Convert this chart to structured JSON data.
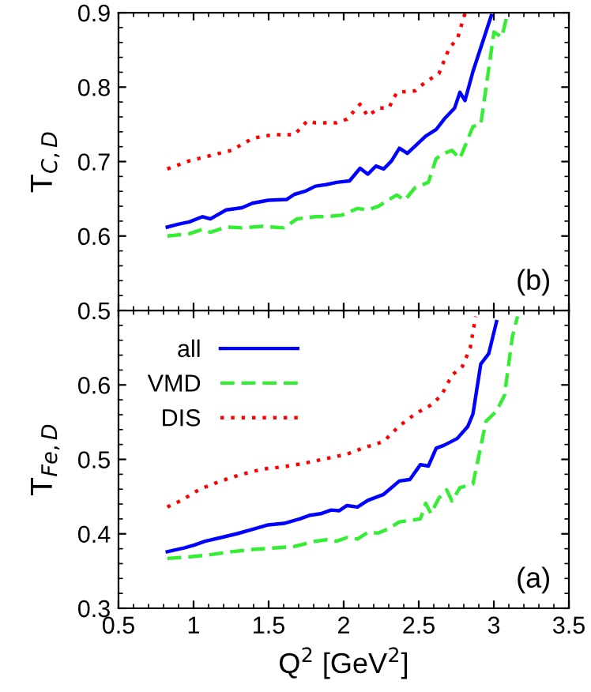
{
  "chart_data": [
    {
      "type": "line",
      "ylabel": "T$_{C,D}$",
      "xlim": [
        0.5,
        3.5
      ],
      "xticks": [
        0.5,
        1,
        1.5,
        2,
        2.5,
        3,
        3.5
      ],
      "ylim": [
        0.5,
        0.9
      ],
      "yticks": [
        0.5,
        0.6,
        0.7,
        0.8,
        0.9
      ],
      "tick_labels": "y",
      "annotations": [
        "(b)"
      ],
      "series": [
        {
          "color": "#0000ff",
          "line_style": "solid",
          "x": [
            0.825,
            0.902,
            0.972,
            1.06,
            1.112,
            1.217,
            1.322,
            1.392,
            1.497,
            1.619,
            1.672,
            1.742,
            1.812,
            1.882,
            1.952,
            2.039,
            2.109,
            2.161,
            2.214,
            2.266,
            2.319,
            2.371,
            2.424,
            2.546,
            2.616,
            2.669,
            2.739,
            2.774,
            2.808,
            2.861,
            2.983
          ],
          "values": [
            0.612,
            0.616,
            0.619,
            0.626,
            0.623,
            0.635,
            0.638,
            0.644,
            0.648,
            0.649,
            0.656,
            0.66,
            0.667,
            0.669,
            0.672,
            0.674,
            0.691,
            0.683,
            0.694,
            0.69,
            0.701,
            0.718,
            0.711,
            0.734,
            0.743,
            0.757,
            0.772,
            0.793,
            0.782,
            0.821,
            0.896
          ]
        },
        {
          "color": "#33ee33",
          "line_style": "dashed",
          "x": [
            0.825,
            0.972,
            1.06,
            1.112,
            1.217,
            1.322,
            1.462,
            1.602,
            1.689,
            1.812,
            1.882,
            1.987,
            2.092,
            2.161,
            2.231,
            2.301,
            2.354,
            2.406,
            2.476,
            2.564,
            2.616,
            2.669,
            2.721,
            2.774,
            2.861,
            2.913,
            3.001,
            3.053,
            3.088
          ],
          "values": [
            0.6,
            0.603,
            0.609,
            0.605,
            0.612,
            0.611,
            0.613,
            0.611,
            0.623,
            0.626,
            0.626,
            0.628,
            0.637,
            0.635,
            0.64,
            0.649,
            0.655,
            0.648,
            0.665,
            0.672,
            0.704,
            0.711,
            0.715,
            0.704,
            0.747,
            0.75,
            0.874,
            0.867,
            0.896
          ]
        },
        {
          "color": "#ff0000",
          "line_style": "dotted",
          "x": [
            0.825,
            0.972,
            1.112,
            1.252,
            1.392,
            1.462,
            1.532,
            1.672,
            1.759,
            1.812,
            1.952,
            2.022,
            2.109,
            2.161,
            2.231,
            2.301,
            2.354,
            2.476,
            2.546,
            2.634,
            2.704,
            2.756,
            2.808
          ],
          "values": [
            0.69,
            0.701,
            0.708,
            0.715,
            0.731,
            0.734,
            0.736,
            0.736,
            0.755,
            0.752,
            0.752,
            0.757,
            0.777,
            0.761,
            0.772,
            0.772,
            0.793,
            0.795,
            0.807,
            0.818,
            0.853,
            0.864,
            0.899
          ]
        }
      ]
    },
    {
      "type": "line",
      "ylabel": "T$_{Fe,D}$",
      "xlabel": "Q$^{2}$ [GeV$^{2}$]",
      "xlim": [
        0.5,
        3.5
      ],
      "xticks": [
        0.5,
        1,
        1.5,
        2,
        2.5,
        3,
        3.5
      ],
      "ylim": [
        0.3,
        0.7
      ],
      "yticks": [
        0.3,
        0.4,
        0.5,
        0.6
      ],
      "legend": "top left",
      "annotations": [
        "(a)"
      ],
      "series": [
        {
          "name": "all",
          "color": "#0000ff",
          "line_style": "solid",
          "x": [
            0.825,
            0.937,
            1.007,
            1.077,
            1.182,
            1.287,
            1.392,
            1.497,
            1.602,
            1.707,
            1.777,
            1.847,
            1.917,
            1.969,
            2.022,
            2.092,
            2.161,
            2.266,
            2.371,
            2.441,
            2.511,
            2.564,
            2.616,
            2.669,
            2.756,
            2.826,
            2.861,
            2.913,
            2.966,
            3.018
          ],
          "values": [
            0.376,
            0.381,
            0.385,
            0.39,
            0.395,
            0.4,
            0.406,
            0.412,
            0.414,
            0.42,
            0.425,
            0.427,
            0.432,
            0.431,
            0.438,
            0.436,
            0.445,
            0.453,
            0.471,
            0.473,
            0.493,
            0.491,
            0.515,
            0.519,
            0.528,
            0.544,
            0.561,
            0.628,
            0.642,
            0.685
          ]
        },
        {
          "name": "VMD",
          "color": "#33ee33",
          "line_style": "dashed",
          "x": [
            0.825,
            0.972,
            1.112,
            1.252,
            1.392,
            1.532,
            1.672,
            1.812,
            1.882,
            1.952,
            2.022,
            2.092,
            2.161,
            2.231,
            2.301,
            2.371,
            2.441,
            2.511,
            2.546,
            2.581,
            2.634,
            2.686,
            2.721,
            2.774,
            2.861,
            2.948,
            3.018,
            3.071,
            3.123,
            3.158
          ],
          "values": [
            0.367,
            0.369,
            0.372,
            0.376,
            0.379,
            0.381,
            0.383,
            0.39,
            0.392,
            0.39,
            0.395,
            0.393,
            0.402,
            0.401,
            0.407,
            0.416,
            0.418,
            0.42,
            0.441,
            0.427,
            0.448,
            0.459,
            0.444,
            0.462,
            0.467,
            0.551,
            0.565,
            0.586,
            0.664,
            0.692
          ]
        },
        {
          "name": "DIS",
          "color": "#ff0000",
          "line_style": "dotted",
          "x": [
            0.825,
            0.92,
            1.042,
            1.182,
            1.322,
            1.462,
            1.602,
            1.742,
            1.882,
            2.022,
            2.126,
            2.266,
            2.371,
            2.476,
            2.581,
            2.651,
            2.721,
            2.791,
            2.843,
            2.879
          ],
          "values": [
            0.436,
            0.445,
            0.46,
            0.471,
            0.48,
            0.487,
            0.49,
            0.495,
            0.501,
            0.507,
            0.515,
            0.524,
            0.545,
            0.561,
            0.573,
            0.586,
            0.613,
            0.625,
            0.65,
            0.692
          ]
        }
      ]
    }
  ]
}
